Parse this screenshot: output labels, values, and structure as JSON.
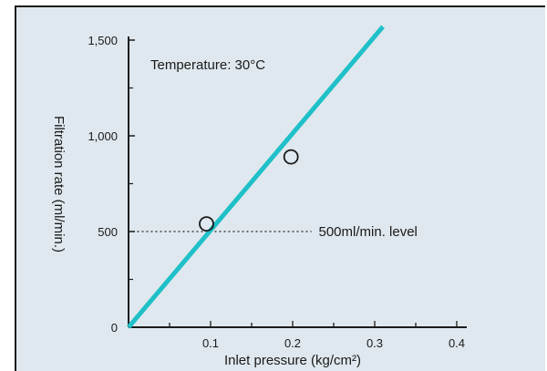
{
  "chart_data": {
    "type": "line",
    "title": "",
    "xlabel": "Inlet pressure (kg/cm²)",
    "ylabel": "Filtration rate (ml/min.)",
    "xlim": [
      0,
      0.4
    ],
    "ylim": [
      0,
      1500
    ],
    "x_ticks": [
      "0.1",
      "0.2",
      "0.3",
      "0.4"
    ],
    "x_tick_values": [
      0.1,
      0.2,
      0.3,
      0.4
    ],
    "y_ticks": [
      "0",
      "500",
      "1,000",
      "1,500"
    ],
    "y_tick_values": [
      0,
      500,
      1000,
      1500
    ],
    "grid": false,
    "series": [
      {
        "x": [
          0,
          0.31
        ],
        "y": [
          0,
          1570
        ],
        "color": "#1fc0c8"
      }
    ],
    "points": [
      {
        "x": 0.095,
        "y": 540
      },
      {
        "x": 0.198,
        "y": 890
      }
    ],
    "reference_line": {
      "y": 500,
      "label": "500ml/min. level"
    },
    "annotation": "Temperature: 30°C",
    "colors": {
      "background": "#dfe8ee",
      "line": "#1fc0c8",
      "axis": "#1b1b1b"
    }
  }
}
